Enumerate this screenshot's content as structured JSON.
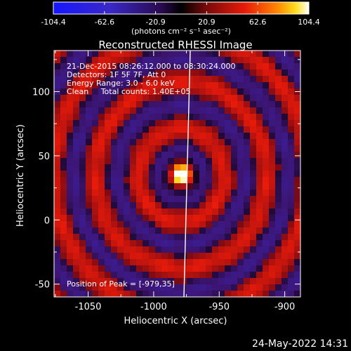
{
  "colorbar": {
    "tick_labels": [
      "-104.4",
      "-62.6",
      "-20.9",
      "20.9",
      "62.6",
      "104.4"
    ],
    "tick_values": [
      -104.4,
      -62.6,
      -20.9,
      20.9,
      62.6,
      104.4
    ],
    "range": [
      -104.4,
      104.4
    ],
    "units_label": "(photons cm⁻² s⁻¹ asec⁻²)",
    "colormap": "blue-black-red-yellow-white"
  },
  "plot": {
    "title": "Reconstructed RHESSI Image",
    "info_lines": [
      "21-Dec-2015 08:26:12.000 to 08:30:24.000",
      "Detectors: 1F 5F 7F, Att 0",
      "Energy Range: 3.0 - 6.0 keV",
      "Clean     Total counts: 1.40E+05"
    ],
    "peak_label": "Position of Peak = [-979,35]",
    "xlabel": "Heliocentric X (arcsec)",
    "ylabel": "Heliocentric Y (arcsec)",
    "x_ticks": [
      "-1050",
      "-1000",
      "-950",
      "-900"
    ],
    "x_tick_values": [
      -1050,
      -1000,
      -950,
      -900
    ],
    "y_ticks": [
      "-50",
      "0",
      "50",
      "100"
    ],
    "y_tick_values": [
      -50,
      0,
      50,
      100
    ],
    "xlim": [
      -1076,
      -888
    ],
    "ylim": [
      -60,
      132
    ]
  },
  "chart_data": {
    "type": "heatmap",
    "title": "Reconstructed RHESSI Image",
    "xlabel": "Heliocentric X (arcsec)",
    "ylabel": "Heliocentric Y (arcsec)",
    "xlim": [
      -1076,
      -888
    ],
    "ylim": [
      -60,
      132
    ],
    "peak": {
      "x": -979,
      "y": 35
    },
    "color_range": [
      -104.4,
      104.4
    ],
    "limb_line": {
      "points": [
        [
          -970,
          132
        ],
        [
          -976,
          -60
        ]
      ]
    }
  },
  "footer": {
    "timestamp": "24-May-2022 14:31"
  }
}
